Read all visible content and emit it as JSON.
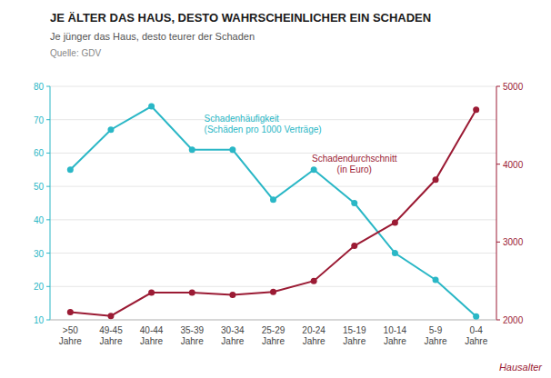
{
  "chart_data": {
    "type": "line",
    "title": "JE ÄLTER DAS HAUS, DESTO WAHRSCHEINLICHER EIN SCHADEN",
    "subtitle": "Je jünger das Haus, desto teurer der Schaden",
    "source": "Quelle: GDV",
    "x_label": "Hausalter",
    "categories": [
      ">50\nJahre",
      "49-45\nJahre",
      "40-44\nJahre",
      "35-39\nJahre",
      "30-34\nJahre",
      "25-29\nJahre",
      "20-24\nJahre",
      "15-19\nJahre",
      "10-14\nJahre",
      "5-9\nJahre",
      "0-4\nJahre"
    ],
    "series": [
      {
        "name": "Schadenhäufigkeit\n(Schäden pro 1000 Verträge)",
        "color": "#2AB7C6",
        "marker": "circle",
        "values": [
          55,
          67,
          74,
          61,
          61,
          46,
          55,
          45,
          30,
          22,
          11
        ]
      },
      {
        "name": "Schadendurchschnitt\n(in Euro)",
        "color": "#9B1B34",
        "marker": "circle",
        "axis": "y2",
        "values": [
          2100,
          2050,
          2350,
          2350,
          2320,
          2360,
          2500,
          2950,
          3250,
          3800,
          4700
        ]
      }
    ],
    "ylim": [
      10,
      80
    ],
    "yticks": [
      10,
      20,
      30,
      40,
      50,
      60,
      70,
      80
    ],
    "y2lim": [
      2000,
      5000
    ],
    "y2ticks": [
      2000,
      3000,
      4000,
      5000
    ],
    "grid": true
  }
}
